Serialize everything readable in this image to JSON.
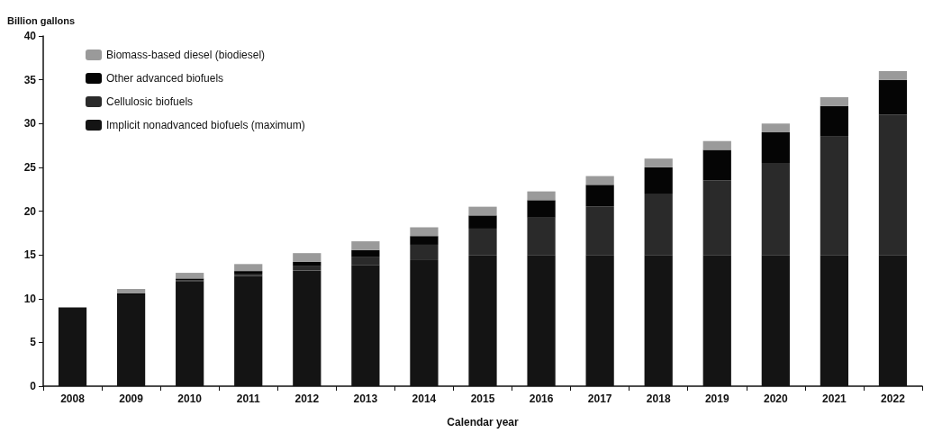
{
  "chart_data": {
    "type": "bar",
    "stacked": true,
    "ylabel": "Billion gallons",
    "xlabel": "Calendar year",
    "categories": [
      "2008",
      "2009",
      "2010",
      "2011",
      "2012",
      "2013",
      "2014",
      "2015",
      "2016",
      "2017",
      "2018",
      "2019",
      "2020",
      "2021",
      "2022"
    ],
    "series": [
      {
        "name": "Implicit nonadvanced biofuels (maximum)",
        "color": "#141414",
        "values": [
          9.0,
          10.5,
          12.0,
          12.6,
          13.2,
          13.8,
          14.4,
          15.0,
          15.0,
          15.0,
          15.0,
          15.0,
          15.0,
          15.0,
          15.0
        ]
      },
      {
        "name": "Cellulosic biofuels",
        "color": "#2a2a2a",
        "values": [
          0,
          0,
          0.1,
          0.25,
          0.5,
          1.0,
          1.75,
          3.0,
          4.25,
          5.5,
          7.0,
          8.5,
          10.5,
          13.5,
          16.0
        ]
      },
      {
        "name": "Other advanced biofuels",
        "color": "#050505",
        "values": [
          0,
          0.1,
          0.2,
          0.3,
          0.5,
          0.75,
          1.0,
          1.5,
          2.0,
          2.5,
          3.0,
          3.5,
          3.5,
          3.5,
          4.0
        ]
      },
      {
        "name": "Biomass-based diesel (biodiesel)",
        "color": "#9a9a9a",
        "values": [
          0,
          0.5,
          0.65,
          0.8,
          1.0,
          1.0,
          1.0,
          1.0,
          1.0,
          1.0,
          1.0,
          1.0,
          1.0,
          1.0,
          1.0
        ]
      }
    ],
    "ylim": [
      0,
      40
    ],
    "yticks": [
      0,
      5,
      10,
      15,
      20,
      25,
      30,
      35,
      40
    ],
    "grid": false,
    "legend": "top left"
  }
}
